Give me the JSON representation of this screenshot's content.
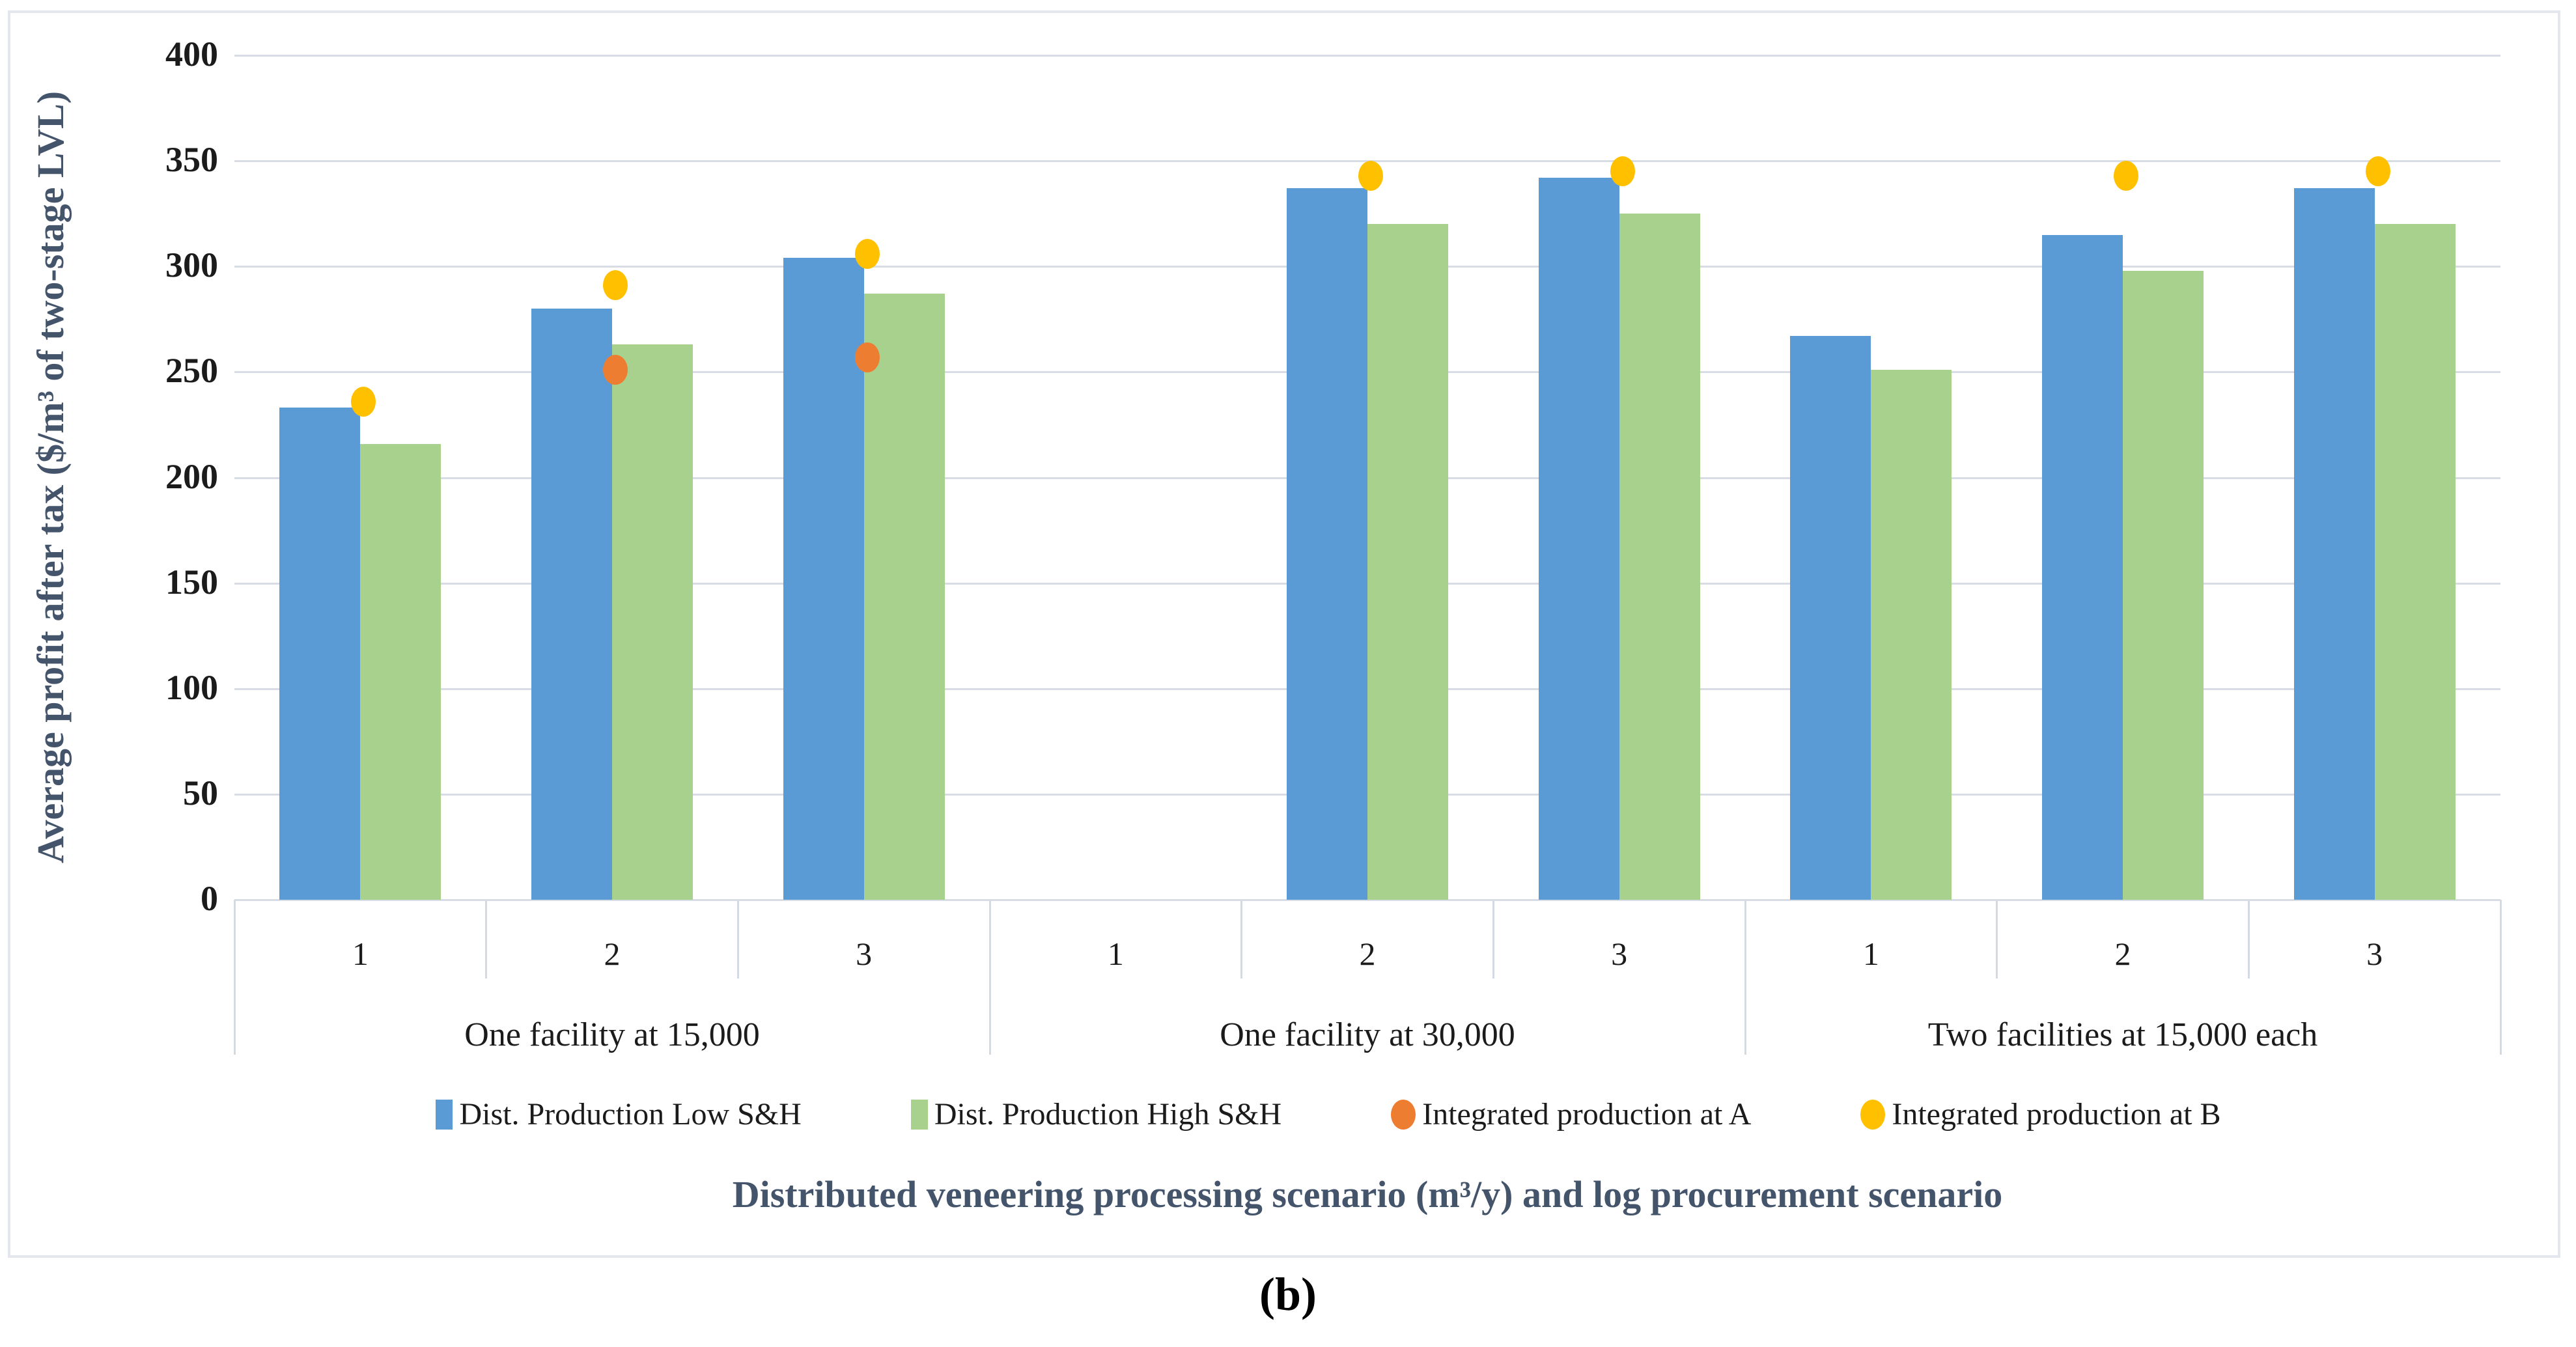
{
  "figure": {
    "caption": "(b)"
  },
  "chart_data": {
    "type": "bar",
    "title": "",
    "xlabel": "Distributed veneering processing scenario (m³/y) and log procurement scenario",
    "ylabel": "Average profit after tax ($/m³ of two-stage LVL)",
    "ylim": [
      0,
      400
    ],
    "ytick_step": 50,
    "yticks": [
      0,
      50,
      100,
      150,
      200,
      250,
      300,
      350,
      400
    ],
    "grid": true,
    "legend_position": "bottom",
    "groups": [
      {
        "label": "One facility at 15,000",
        "categories": [
          "1",
          "2",
          "3"
        ]
      },
      {
        "label": "One facility at 30,000",
        "categories": [
          "1",
          "2",
          "3"
        ]
      },
      {
        "label": "Two facilities at 15,000 each",
        "categories": [
          "1",
          "2",
          "3"
        ]
      }
    ],
    "categories": [
      "1",
      "2",
      "3",
      "1",
      "2",
      "3",
      "1",
      "2",
      "3"
    ],
    "series": [
      {
        "name": "Dist. Production Low S&H",
        "marker": "bar",
        "color": "#5B9BD5",
        "values": [
          233,
          280,
          304,
          null,
          337,
          342,
          267,
          315,
          337
        ]
      },
      {
        "name": "Dist. Production High S&H",
        "marker": "bar",
        "color": "#A9D18E",
        "values": [
          216,
          263,
          287,
          null,
          320,
          325,
          251,
          298,
          320
        ]
      },
      {
        "name": "Integrated production at A",
        "marker": "circle",
        "color": "#ED7D31",
        "values": [
          null,
          251,
          257,
          null,
          null,
          null,
          null,
          null,
          null
        ]
      },
      {
        "name": "Integrated production at B",
        "marker": "circle",
        "color": "#FFC000",
        "values": [
          236,
          291,
          306,
          null,
          343,
          345,
          null,
          343,
          345
        ]
      }
    ]
  }
}
